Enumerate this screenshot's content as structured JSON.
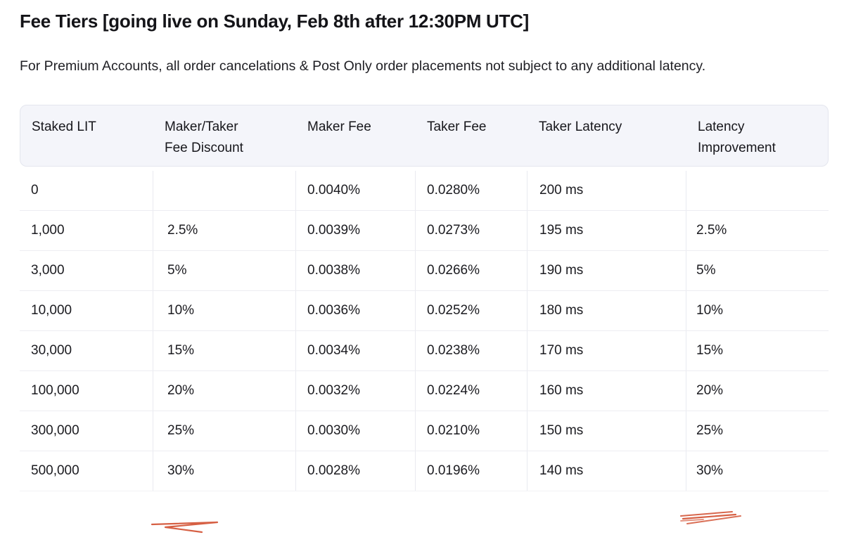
{
  "page": {
    "title": "Fee Tiers [going live on Sunday, Feb 8th after 12:30PM UTC]",
    "intro": "For Premium Accounts, all order cancelations & Post Only order placements not subject to any additional latency."
  },
  "table": {
    "columns": [
      {
        "line1": "Staked LIT",
        "line2": ""
      },
      {
        "line1": "Maker/Taker",
        "line2": "Fee Discount"
      },
      {
        "line1": "Maker Fee",
        "line2": ""
      },
      {
        "line1": "Taker Fee",
        "line2": ""
      },
      {
        "line1": "Taker Latency",
        "line2": ""
      },
      {
        "line1": "Latency",
        "line2": "Improvement"
      }
    ],
    "rows": [
      [
        "0",
        "",
        "0.0040%",
        "0.0280%",
        "200 ms",
        ""
      ],
      [
        "1,000",
        "2.5%",
        "0.0039%",
        "0.0273%",
        "195 ms",
        "2.5%"
      ],
      [
        "3,000",
        "5%",
        "0.0038%",
        "0.0266%",
        "190 ms",
        "5%"
      ],
      [
        "10,000",
        "10%",
        "0.0036%",
        "0.0252%",
        "180 ms",
        "10%"
      ],
      [
        "30,000",
        "15%",
        "0.0034%",
        "0.0238%",
        "170 ms",
        "15%"
      ],
      [
        "100,000",
        "20%",
        "0.0032%",
        "0.0224%",
        "160 ms",
        "20%"
      ],
      [
        "300,000",
        "25%",
        "0.0030%",
        "0.0210%",
        "150 ms",
        "25%"
      ],
      [
        "500,000",
        "30%",
        "0.0028%",
        "0.0196%",
        "140 ms",
        "30%"
      ]
    ]
  },
  "annotations": {
    "scribble_color": "#d4573a",
    "highlighted_cells": [
      "row 500,000 Maker/Taker Fee Discount 30%",
      "row 500,000 Latency Improvement 30%"
    ]
  },
  "colors": {
    "header_bg": "#f4f5fa",
    "header_border": "#e4e6ee",
    "row_divider": "#ededf2",
    "column_divider": "#e9eaf0",
    "text": "#1b1b20"
  }
}
